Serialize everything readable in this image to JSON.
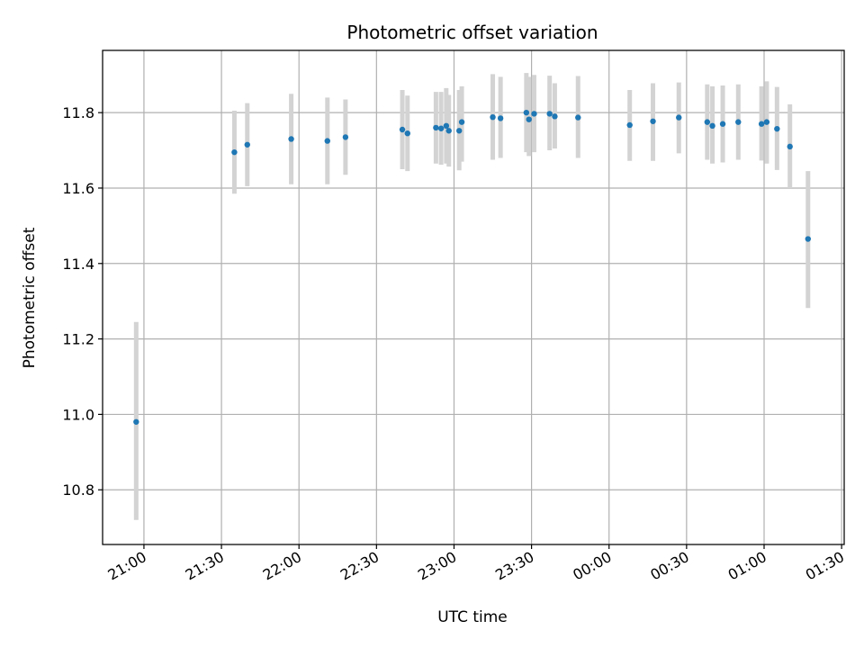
{
  "chart_data": {
    "type": "scatter",
    "title": "Photometric offset variation",
    "xlabel": "UTC time",
    "ylabel": "Photometric offset",
    "xlim": [
      "20:44",
      "01:31"
    ],
    "ylim": [
      10.655,
      11.965
    ],
    "x_ticks": [
      "21:00",
      "21:30",
      "22:00",
      "22:30",
      "23:00",
      "23:30",
      "00:00",
      "00:30",
      "01:00",
      "01:30"
    ],
    "y_ticks": [
      "10.8",
      "11.0",
      "11.2",
      "11.4",
      "11.6",
      "11.8"
    ],
    "grid": true,
    "point_color": "#1f77b4",
    "errorbar_color": "#d3d3d3",
    "series": [
      {
        "points": [
          {
            "x": "20:57",
            "y": 10.98,
            "low": 10.72,
            "high": 11.245
          },
          {
            "x": "21:35",
            "y": 11.695,
            "low": 11.585,
            "high": 11.805
          },
          {
            "x": "21:40",
            "y": 11.715,
            "low": 11.605,
            "high": 11.825
          },
          {
            "x": "21:57",
            "y": 11.73,
            "low": 11.61,
            "high": 11.85
          },
          {
            "x": "22:11",
            "y": 11.725,
            "low": 11.61,
            "high": 11.84
          },
          {
            "x": "22:18",
            "y": 11.735,
            "low": 11.635,
            "high": 11.835
          },
          {
            "x": "22:40",
            "y": 11.755,
            "low": 11.65,
            "high": 11.86
          },
          {
            "x": "22:42",
            "y": 11.745,
            "low": 11.645,
            "high": 11.845
          },
          {
            "x": "22:53",
            "y": 11.76,
            "low": 11.665,
            "high": 11.855
          },
          {
            "x": "22:55",
            "y": 11.758,
            "low": 11.662,
            "high": 11.855
          },
          {
            "x": "22:57",
            "y": 11.765,
            "low": 11.665,
            "high": 11.865
          },
          {
            "x": "22:58",
            "y": 11.752,
            "low": 11.657,
            "high": 11.847
          },
          {
            "x": "23:02",
            "y": 11.752,
            "low": 11.647,
            "high": 11.86
          },
          {
            "x": "23:03",
            "y": 11.775,
            "low": 11.67,
            "high": 11.87
          },
          {
            "x": "23:15",
            "y": 11.788,
            "low": 11.675,
            "high": 11.902
          },
          {
            "x": "23:18",
            "y": 11.785,
            "low": 11.68,
            "high": 11.895
          },
          {
            "x": "23:28",
            "y": 11.8,
            "low": 11.695,
            "high": 11.905
          },
          {
            "x": "23:29",
            "y": 11.782,
            "low": 11.685,
            "high": 11.895
          },
          {
            "x": "23:31",
            "y": 11.797,
            "low": 11.695,
            "high": 11.9
          },
          {
            "x": "23:37",
            "y": 11.797,
            "low": 11.7,
            "high": 11.898
          },
          {
            "x": "23:39",
            "y": 11.79,
            "low": 11.705,
            "high": 11.878
          },
          {
            "x": "23:48",
            "y": 11.787,
            "low": 11.68,
            "high": 11.897
          },
          {
            "x": "00:08",
            "y": 11.767,
            "low": 11.672,
            "high": 11.86
          },
          {
            "x": "00:17",
            "y": 11.777,
            "low": 11.672,
            "high": 11.878
          },
          {
            "x": "00:27",
            "y": 11.787,
            "low": 11.692,
            "high": 11.88
          },
          {
            "x": "00:38",
            "y": 11.775,
            "low": 11.675,
            "high": 11.875
          },
          {
            "x": "00:40",
            "y": 11.765,
            "low": 11.665,
            "high": 11.87
          },
          {
            "x": "00:44",
            "y": 11.77,
            "low": 11.668,
            "high": 11.872
          },
          {
            "x": "00:50",
            "y": 11.775,
            "low": 11.675,
            "high": 11.875
          },
          {
            "x": "00:59",
            "y": 11.77,
            "low": 11.673,
            "high": 11.87
          },
          {
            "x": "01:01",
            "y": 11.775,
            "low": 11.665,
            "high": 11.883
          },
          {
            "x": "01:05",
            "y": 11.757,
            "low": 11.648,
            "high": 11.868
          },
          {
            "x": "01:10",
            "y": 11.71,
            "low": 11.6,
            "high": 11.822
          },
          {
            "x": "01:17",
            "y": 11.465,
            "low": 11.282,
            "high": 11.645
          }
        ]
      }
    ]
  }
}
